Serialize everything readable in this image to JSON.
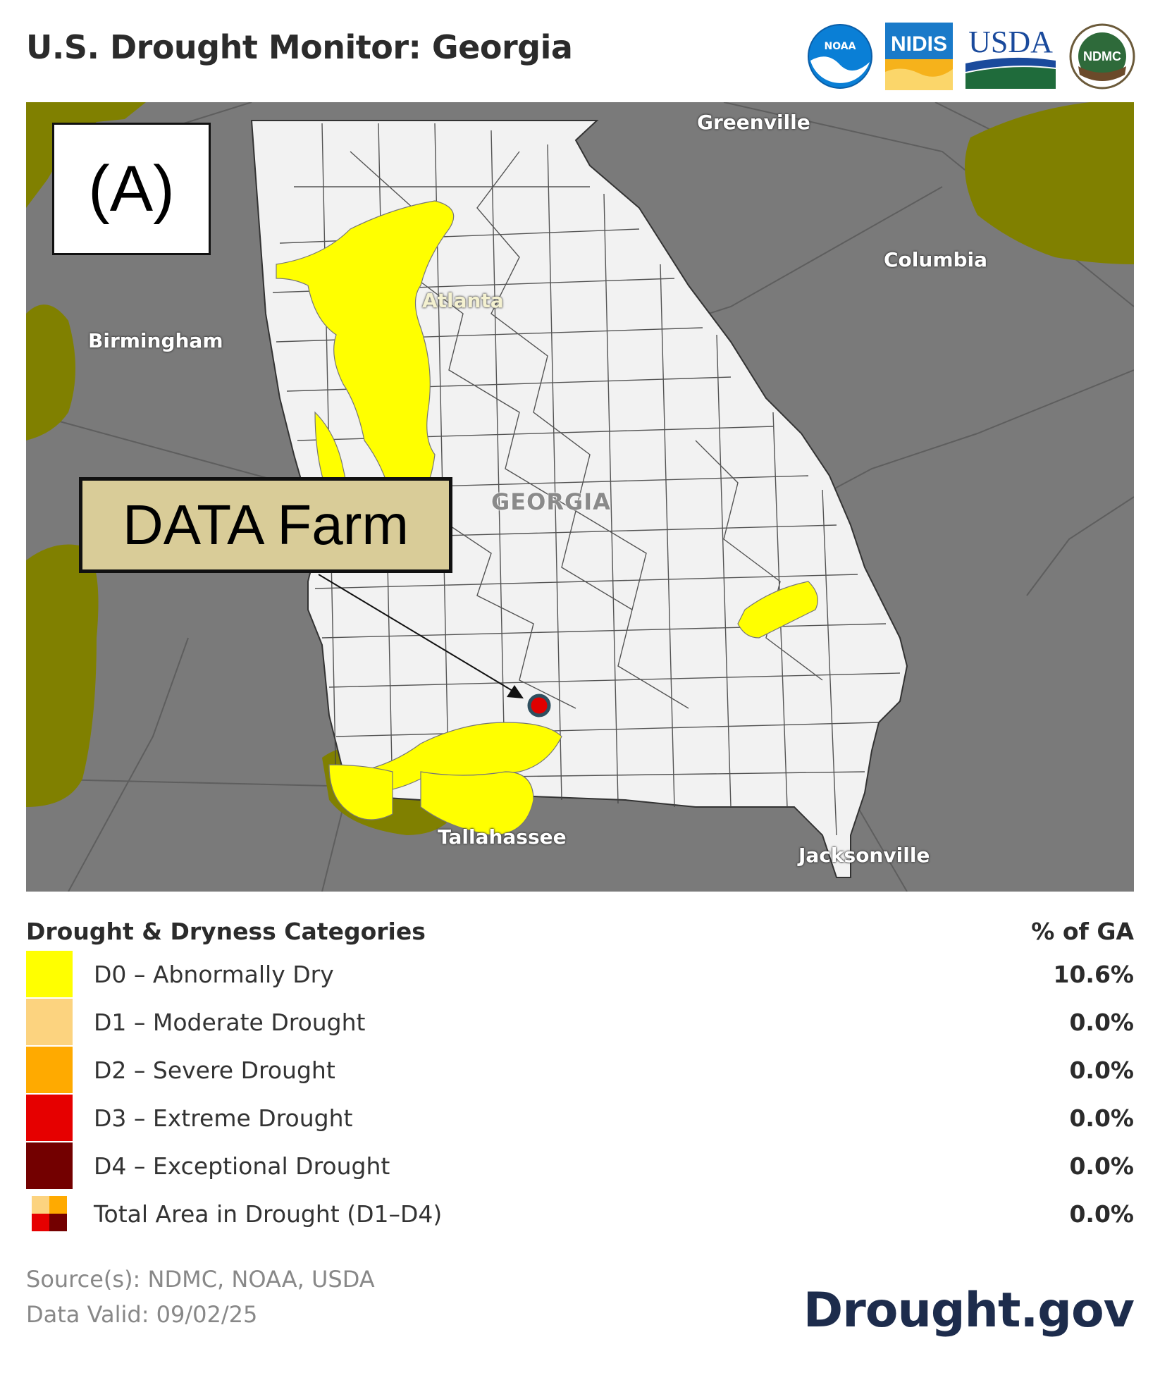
{
  "title": "U.S. Drought Monitor: Georgia",
  "logos": {
    "noaa": "NOAA",
    "nidis": "NIDIS",
    "usda": "USDA",
    "ndmc": "NDMC"
  },
  "map": {
    "panel_label": "(A)",
    "farm_label": "DATA Farm",
    "state_label": "GEORGIA",
    "cities": {
      "greenville": "Greenville",
      "columbia": "Columbia",
      "atlanta": "Atlanta",
      "birmingham": "Birmingham",
      "tallahassee": "Tallahassee",
      "jacksonville": "Jacksonville"
    },
    "colors": {
      "background": "#7a7a7a",
      "state_fill": "#f2f2f2",
      "d0_fill": "#ffff00",
      "neighbor_dry_fill": "#808000",
      "farm_marker": "#e00000"
    }
  },
  "legend": {
    "heading": "Drought & Dryness Categories",
    "pct_heading": "% of GA",
    "rows": [
      {
        "label": "D0 – Abnormally Dry",
        "pct": "10.6%",
        "color": "#ffff00"
      },
      {
        "label": "D1 – Moderate Drought",
        "pct": "0.0%",
        "color": "#fcd37f"
      },
      {
        "label": "D2 – Severe Drought",
        "pct": "0.0%",
        "color": "#ffaa00"
      },
      {
        "label": "D3 – Extreme Drought",
        "pct": "0.0%",
        "color": "#e60000"
      },
      {
        "label": "D4 – Exceptional Drought",
        "pct": "0.0%",
        "color": "#730000"
      },
      {
        "label": "Total Area in Drought (D1–D4)",
        "pct": "0.0%",
        "color": "mixed"
      }
    ]
  },
  "footer": {
    "sources": "Source(s): NDMC, NOAA, USDA",
    "valid": "Data Valid: 09/02/25",
    "brand": "Drought.gov"
  }
}
